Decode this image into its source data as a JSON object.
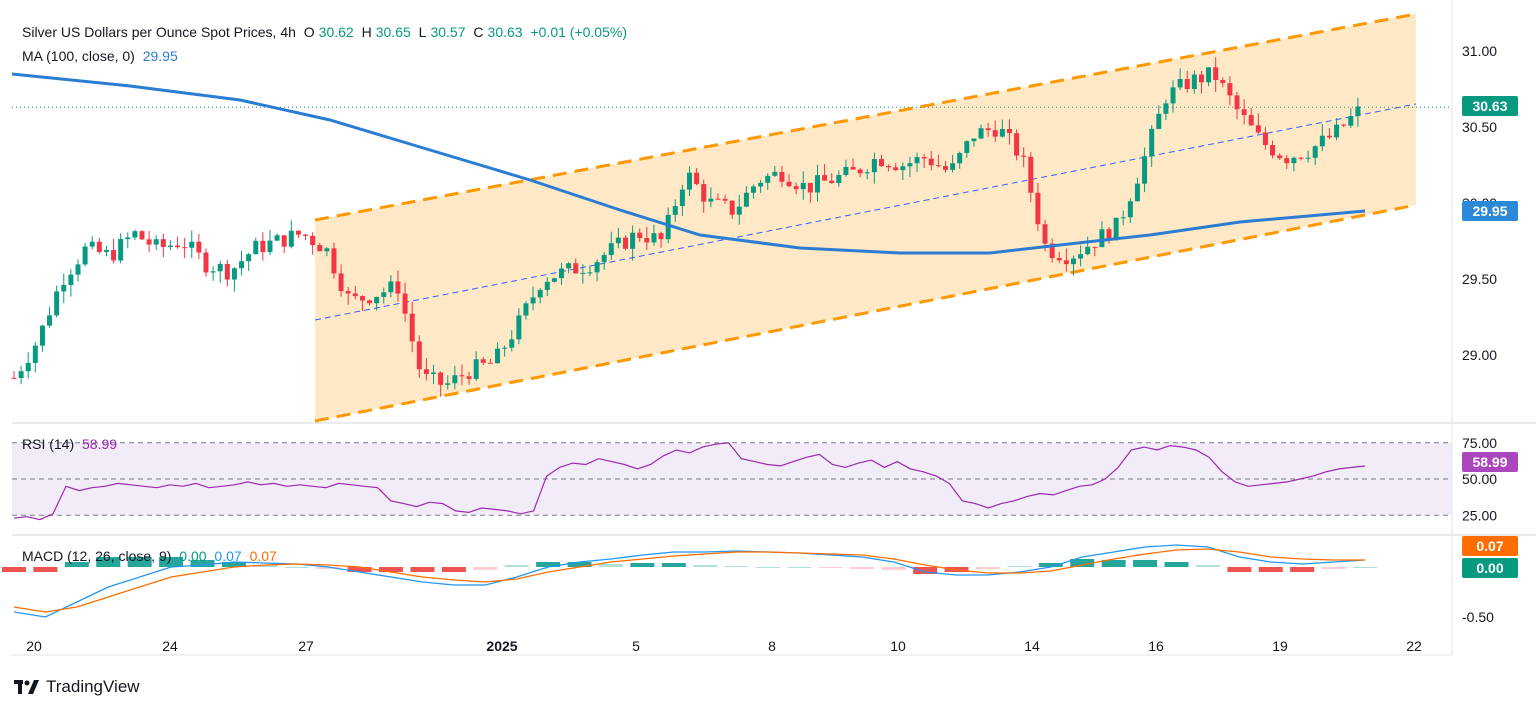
{
  "legend": {
    "symbol": "Silver US Dollars per Ounce Spot Prices, 4h",
    "open_label": "O",
    "open": "30.62",
    "high_label": "H",
    "high": "30.65",
    "low_label": "L",
    "low": "30.57",
    "close_label": "C",
    "close": "30.63",
    "change": "+0.01 (+0.05%)",
    "ma_label": "MA (100, close, 0)",
    "ma_value": "29.95",
    "rsi_label": "RSI (14)",
    "rsi_value": "58.99",
    "macd_label": "MACD (12, 26, close, 9)",
    "macd_hist": "0.00",
    "macd_line": "0.07",
    "macd_signal": "0.07"
  },
  "tags": {
    "price": "30.63",
    "ma": "29.95",
    "rsi": "58.99",
    "macd_top": "0.07",
    "macd_bottom": "0.00"
  },
  "brand": "TradingView",
  "colors": {
    "up": "#089981",
    "down": "#f23645",
    "ma": "#2b7cd3",
    "channel": "#ff9800",
    "rsi": "#9c27b0",
    "macd": "#2196f3",
    "signal": "#ff6d00"
  },
  "chart_data": {
    "type": "candlestick",
    "title": "Silver US Dollars per Ounce Spot Prices, 4h",
    "x_tick_labels": [
      "20",
      "24",
      "27",
      "2025",
      "5",
      "8",
      "10",
      "14",
      "16",
      "19",
      "22"
    ],
    "y_tick_labels": [
      "31.00",
      "30.50",
      "30.00",
      "29.50",
      "29.00"
    ],
    "ylim": [
      28.5,
      31.25
    ],
    "close_path": [
      28.85,
      29.1,
      29.5,
      29.7,
      29.65,
      29.8,
      29.7,
      29.75,
      29.6,
      29.55,
      29.7,
      29.75,
      29.8,
      29.7,
      29.35,
      29.4,
      29.45,
      28.85,
      28.8,
      28.9,
      28.95,
      29.2,
      29.5,
      29.55,
      29.6,
      29.7,
      29.8,
      29.75,
      30.2,
      30.0,
      29.95,
      30.15,
      30.2,
      30.1,
      30.15,
      30.2,
      30.3,
      30.25,
      30.3,
      30.2,
      30.45,
      30.5,
      30.3,
      29.7,
      29.65,
      29.75,
      29.85,
      30.25,
      30.7,
      30.8,
      30.85,
      30.6,
      30.4,
      30.3,
      30.35,
      30.45,
      30.6
    ],
    "rsi": {
      "levels": [
        75,
        50,
        25
      ],
      "tick_labels": [
        "75.00",
        "50.00",
        "25.00"
      ],
      "last": 58.99
    },
    "macd": {
      "tick_labels": [
        "0.07",
        "0.00",
        "-0.50"
      ],
      "line": 0.07,
      "signal": 0.07,
      "hist": 0.0
    }
  }
}
